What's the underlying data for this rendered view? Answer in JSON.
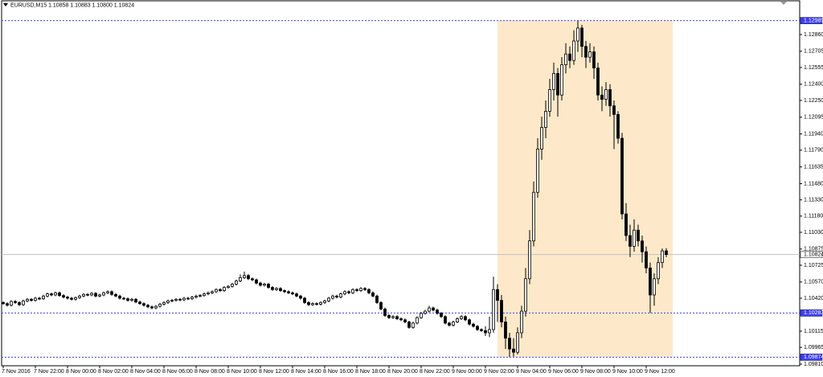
{
  "chart_data": {
    "type": "candlestick",
    "title": "EURUSD,M15  1.10858 1.10883 1.10800 1.10824",
    "up_color": "#ffffff",
    "down_color": "#000000",
    "level_color": "#3c3cff",
    "highlight_color": "#fde9c9",
    "ylim": [
      1.09795,
      1.13172
    ],
    "yticks": [
      {
        "value": 1.1286,
        "label": "1.12860"
      },
      {
        "value": 1.12705,
        "label": "1.12705"
      },
      {
        "value": 1.12555,
        "label": "1.12555"
      },
      {
        "value": 1.124,
        "label": "1.12400"
      },
      {
        "value": 1.1225,
        "label": "1.12250"
      },
      {
        "value": 1.12095,
        "label": "1.12095"
      },
      {
        "value": 1.1194,
        "label": "1.11940"
      },
      {
        "value": 1.1179,
        "label": "1.11790"
      },
      {
        "value": 1.11635,
        "label": "1.11635"
      },
      {
        "value": 1.1148,
        "label": "1.11480"
      },
      {
        "value": 1.1133,
        "label": "1.11330"
      },
      {
        "value": 1.1118,
        "label": "1.11180"
      },
      {
        "value": 1.1103,
        "label": "1.11030"
      },
      {
        "value": 1.10875,
        "label": "1.10875"
      },
      {
        "value": 1.10725,
        "label": "1.10725"
      },
      {
        "value": 1.1057,
        "label": "1.10570"
      },
      {
        "value": 1.1042,
        "label": "1.10420"
      },
      {
        "value": 1.10115,
        "label": "1.10115"
      },
      {
        "value": 1.09965,
        "label": "1.09965"
      },
      {
        "value": 1.0981,
        "label": "1.09810"
      }
    ],
    "levels": [
      1.12989,
      1.10283,
      1.09874
    ],
    "current_price": 1.10824,
    "categories": [
      "7 Nov 2016",
      null,
      null,
      null,
      null,
      null,
      null,
      null,
      "7 Nov 22:00",
      null,
      null,
      null,
      null,
      null,
      null,
      null,
      "8 Nov 00:00",
      null,
      null,
      null,
      null,
      null,
      null,
      null,
      "8 Nov 02:00",
      null,
      null,
      null,
      null,
      null,
      null,
      null,
      "8 Nov 04:00",
      null,
      null,
      null,
      null,
      null,
      null,
      null,
      "8 Nov 06:00",
      null,
      null,
      null,
      null,
      null,
      null,
      null,
      "8 Nov 08:00",
      null,
      null,
      null,
      null,
      null,
      null,
      null,
      "8 Nov 10:00",
      null,
      null,
      null,
      null,
      null,
      null,
      null,
      "8 Nov 12:00",
      null,
      null,
      null,
      null,
      null,
      null,
      null,
      "8 Nov 14:00",
      null,
      null,
      null,
      null,
      null,
      null,
      null,
      "8 Nov 16:00",
      null,
      null,
      null,
      null,
      null,
      null,
      null,
      "8 Nov 18:00",
      null,
      null,
      null,
      null,
      null,
      null,
      null,
      "8 Nov 20:00",
      null,
      null,
      null,
      null,
      null,
      null,
      null,
      "8 Nov 22:00",
      null,
      null,
      null,
      null,
      null,
      null,
      null,
      "9 Nov 00:00",
      null,
      null,
      null,
      null,
      null,
      null,
      null,
      "9 Nov 02:00",
      null,
      null,
      null,
      null,
      null,
      null,
      null,
      "9 Nov 04:00",
      null,
      null,
      null,
      null,
      null,
      null,
      null,
      "9 Nov 06:00",
      null,
      null,
      null,
      null,
      null,
      null,
      null,
      "9 Nov 08:00",
      null,
      null,
      null,
      null,
      null,
      null,
      null,
      "9 Nov 10:00",
      null,
      null,
      null,
      null,
      null,
      null,
      null,
      "9 Nov 12:00",
      null,
      null,
      null,
      null,
      null
    ],
    "ohlc": [
      [
        1.1038,
        1.10392,
        1.10358,
        1.1037
      ],
      [
        1.1037,
        1.10382,
        1.10343,
        1.10355
      ],
      [
        1.10355,
        1.10402,
        1.10343,
        1.1039
      ],
      [
        1.1039,
        1.10402,
        1.10368,
        1.1038
      ],
      [
        1.1038,
        1.10392,
        1.10348,
        1.1036
      ],
      [
        1.1036,
        1.10407,
        1.10348,
        1.10395
      ],
      [
        1.10395,
        1.10422,
        1.10383,
        1.1041
      ],
      [
        1.1041,
        1.10422,
        1.10388,
        1.104
      ],
      [
        1.104,
        1.10432,
        1.10388,
        1.1042
      ],
      [
        1.1042,
        1.10432,
        1.10403,
        1.10415
      ],
      [
        1.10415,
        1.10452,
        1.10403,
        1.1044
      ],
      [
        1.1044,
        1.10472,
        1.10428,
        1.1046
      ],
      [
        1.1046,
        1.10472,
        1.10438,
        1.1045
      ],
      [
        1.1045,
        1.10482,
        1.10438,
        1.1047
      ],
      [
        1.1047,
        1.10482,
        1.10433,
        1.10445
      ],
      [
        1.10445,
        1.10457,
        1.10418,
        1.1043
      ],
      [
        1.1043,
        1.10442,
        1.10408,
        1.1042
      ],
      [
        1.1042,
        1.10432,
        1.10398,
        1.1041
      ],
      [
        1.1041,
        1.10437,
        1.10398,
        1.10425
      ],
      [
        1.10425,
        1.10452,
        1.10413,
        1.1044
      ],
      [
        1.1044,
        1.10467,
        1.10428,
        1.10455
      ],
      [
        1.10455,
        1.10467,
        1.10438,
        1.1045
      ],
      [
        1.1045,
        1.10477,
        1.10438,
        1.10465
      ],
      [
        1.10465,
        1.10477,
        1.10428,
        1.1044
      ],
      [
        1.1044,
        1.10462,
        1.10428,
        1.1045
      ],
      [
        1.1045,
        1.10482,
        1.10438,
        1.1047
      ],
      [
        1.1047,
        1.10492,
        1.10458,
        1.1048
      ],
      [
        1.1048,
        1.10492,
        1.10443,
        1.10455
      ],
      [
        1.10455,
        1.10467,
        1.10428,
        1.1044
      ],
      [
        1.1044,
        1.10452,
        1.10408,
        1.1042
      ],
      [
        1.1042,
        1.10432,
        1.10403,
        1.10415
      ],
      [
        1.10415,
        1.10427,
        1.10388,
        1.104
      ],
      [
        1.104,
        1.10422,
        1.10388,
        1.1041
      ],
      [
        1.1041,
        1.10422,
        1.10373,
        1.10385
      ],
      [
        1.10385,
        1.10397,
        1.10358,
        1.1037
      ],
      [
        1.1037,
        1.10382,
        1.10343,
        1.10355
      ],
      [
        1.10355,
        1.10367,
        1.10328,
        1.1034
      ],
      [
        1.1034,
        1.10352,
        1.10318,
        1.1033
      ],
      [
        1.1033,
        1.10357,
        1.10318,
        1.10345
      ],
      [
        1.10345,
        1.10377,
        1.10333,
        1.10365
      ],
      [
        1.10365,
        1.10392,
        1.10353,
        1.1038
      ],
      [
        1.1038,
        1.10407,
        1.10368,
        1.10395
      ],
      [
        1.10395,
        1.10412,
        1.10383,
        1.104
      ],
      [
        1.104,
        1.10422,
        1.10388,
        1.1041
      ],
      [
        1.1041,
        1.10422,
        1.10393,
        1.10405
      ],
      [
        1.10405,
        1.10432,
        1.10393,
        1.1042
      ],
      [
        1.1042,
        1.10432,
        1.10403,
        1.10415
      ],
      [
        1.10415,
        1.10442,
        1.10403,
        1.1043
      ],
      [
        1.1043,
        1.10452,
        1.10418,
        1.1044
      ],
      [
        1.1044,
        1.10457,
        1.10428,
        1.10445
      ],
      [
        1.10445,
        1.10472,
        1.10433,
        1.1046
      ],
      [
        1.1046,
        1.10482,
        1.10448,
        1.1047
      ],
      [
        1.1047,
        1.10492,
        1.10458,
        1.1048
      ],
      [
        1.1048,
        1.10512,
        1.10468,
        1.105
      ],
      [
        1.105,
        1.10512,
        1.10478,
        1.1049
      ],
      [
        1.1049,
        1.10532,
        1.10478,
        1.1052
      ],
      [
        1.1052,
        1.10542,
        1.10508,
        1.1053
      ],
      [
        1.1053,
        1.10562,
        1.10518,
        1.1055
      ],
      [
        1.1055,
        1.10592,
        1.10538,
        1.1058
      ],
      [
        1.1058,
        1.1064,
        1.10568,
        1.1061
      ],
      [
        1.1061,
        1.10666,
        1.10598,
        1.1063
      ],
      [
        1.1063,
        1.10642,
        1.10588,
        1.106
      ],
      [
        1.106,
        1.10612,
        1.10578,
        1.1059
      ],
      [
        1.1059,
        1.10602,
        1.10548,
        1.1056
      ],
      [
        1.1056,
        1.10572,
        1.10528,
        1.1054
      ],
      [
        1.1054,
        1.10562,
        1.10528,
        1.1055
      ],
      [
        1.1055,
        1.10562,
        1.10508,
        1.1052
      ],
      [
        1.1052,
        1.10532,
        1.10488,
        1.105
      ],
      [
        1.105,
        1.10522,
        1.10488,
        1.1051
      ],
      [
        1.1051,
        1.10522,
        1.10478,
        1.1049
      ],
      [
        1.1049,
        1.10502,
        1.10468,
        1.1048
      ],
      [
        1.1048,
        1.10492,
        1.10458,
        1.1047
      ],
      [
        1.1047,
        1.10482,
        1.10448,
        1.1046
      ],
      [
        1.1046,
        1.10472,
        1.10428,
        1.1044
      ],
      [
        1.1044,
        1.10452,
        1.10408,
        1.1042
      ],
      [
        1.1042,
        1.10432,
        1.10368,
        1.1038
      ],
      [
        1.1038,
        1.10392,
        1.10348,
        1.1036
      ],
      [
        1.1036,
        1.10382,
        1.10348,
        1.1037
      ],
      [
        1.1037,
        1.10382,
        1.10353,
        1.10365
      ],
      [
        1.10365,
        1.10392,
        1.10353,
        1.1038
      ],
      [
        1.1038,
        1.10407,
        1.10368,
        1.10395
      ],
      [
        1.10395,
        1.10432,
        1.10383,
        1.1042
      ],
      [
        1.1042,
        1.10452,
        1.10408,
        1.1044
      ],
      [
        1.1044,
        1.10452,
        1.10418,
        1.1043
      ],
      [
        1.1043,
        1.10472,
        1.10418,
        1.1046
      ],
      [
        1.1046,
        1.10492,
        1.10448,
        1.1048
      ],
      [
        1.1048,
        1.10492,
        1.10458,
        1.1047
      ],
      [
        1.1047,
        1.10512,
        1.10458,
        1.105
      ],
      [
        1.105,
        1.10512,
        1.10478,
        1.1049
      ],
      [
        1.1049,
        1.10522,
        1.10478,
        1.1051
      ],
      [
        1.1051,
        1.10522,
        1.10488,
        1.105
      ],
      [
        1.105,
        1.10512,
        1.10458,
        1.1047
      ],
      [
        1.1047,
        1.10482,
        1.10428,
        1.1044
      ],
      [
        1.1044,
        1.10452,
        1.10368,
        1.1038
      ],
      [
        1.1038,
        1.10392,
        1.10308,
        1.1032
      ],
      [
        1.1032,
        1.10332,
        1.10248,
        1.1026
      ],
      [
        1.1026,
        1.10272,
        1.10228,
        1.1024
      ],
      [
        1.1024,
        1.10262,
        1.10228,
        1.1025
      ],
      [
        1.1025,
        1.10262,
        1.10218,
        1.1023
      ],
      [
        1.1023,
        1.10242,
        1.10208,
        1.1022
      ],
      [
        1.1022,
        1.10232,
        1.10188,
        1.102
      ],
      [
        1.102,
        1.10212,
        1.10138,
        1.1015
      ],
      [
        1.1015,
        1.10202,
        1.10138,
        1.1019
      ],
      [
        1.1019,
        1.10252,
        1.10178,
        1.1024
      ],
      [
        1.1024,
        1.10292,
        1.10228,
        1.1028
      ],
      [
        1.1028,
        1.10312,
        1.10268,
        1.103
      ],
      [
        1.103,
        1.1035,
        1.10288,
        1.1033
      ],
      [
        1.1033,
        1.10342,
        1.10298,
        1.1031
      ],
      [
        1.1031,
        1.10322,
        1.10268,
        1.1028
      ],
      [
        1.1028,
        1.10292,
        1.10238,
        1.1025
      ],
      [
        1.1025,
        1.10262,
        1.10178,
        1.1019
      ],
      [
        1.1019,
        1.10202,
        1.10158,
        1.1017
      ],
      [
        1.1017,
        1.10212,
        1.10158,
        1.102
      ],
      [
        1.102,
        1.10242,
        1.10188,
        1.1023
      ],
      [
        1.1023,
        1.10262,
        1.10218,
        1.1025
      ],
      [
        1.1025,
        1.10262,
        1.10208,
        1.1022
      ],
      [
        1.1022,
        1.10232,
        1.10168,
        1.1018
      ],
      [
        1.1018,
        1.10192,
        1.10148,
        1.1016
      ],
      [
        1.1016,
        1.10172,
        1.10118,
        1.1013
      ],
      [
        1.1013,
        1.10142,
        1.10108,
        1.1012
      ],
      [
        1.1012,
        1.1016,
        1.1007,
        1.101
      ],
      [
        1.101,
        1.1025,
        1.1006,
        1.1013
      ],
      [
        1.1013,
        1.1062,
        1.101,
        1.105
      ],
      [
        1.105,
        1.1055,
        1.102,
        1.104
      ],
      [
        1.104,
        1.1045,
        1.1015,
        1.102
      ],
      [
        1.102,
        1.1025,
        1.0995,
        1.1005
      ],
      [
        1.1005,
        1.101,
        1.09876,
        1.0995
      ],
      [
        1.0995,
        1.1005,
        1.0988,
        1.0992
      ],
      [
        1.0992,
        1.1015,
        1.099,
        1.101
      ],
      [
        1.101,
        1.1035,
        1.1005,
        1.103
      ],
      [
        1.103,
        1.107,
        1.1025,
        1.106
      ],
      [
        1.106,
        1.1105,
        1.1055,
        1.1095
      ],
      [
        1.1095,
        1.115,
        1.109,
        1.114
      ],
      [
        1.114,
        1.119,
        1.1135,
        1.118
      ],
      [
        1.118,
        1.121,
        1.117,
        1.12
      ],
      [
        1.12,
        1.1225,
        1.119,
        1.1215
      ],
      [
        1.1215,
        1.1245,
        1.121,
        1.1235
      ],
      [
        1.1235,
        1.126,
        1.1225,
        1.125
      ],
      [
        1.125,
        1.1255,
        1.121,
        1.123
      ],
      [
        1.123,
        1.1265,
        1.1225,
        1.1258
      ],
      [
        1.1258,
        1.1278,
        1.125,
        1.1268
      ],
      [
        1.1268,
        1.1275,
        1.1255,
        1.1262
      ],
      [
        1.1262,
        1.129,
        1.1258,
        1.128
      ],
      [
        1.128,
        1.12989,
        1.127,
        1.1292
      ],
      [
        1.1292,
        1.1295,
        1.1265,
        1.1275
      ],
      [
        1.1275,
        1.128,
        1.1255,
        1.1265
      ],
      [
        1.1265,
        1.1278,
        1.126,
        1.127
      ],
      [
        1.127,
        1.1275,
        1.1245,
        1.1255
      ],
      [
        1.1255,
        1.126,
        1.1225,
        1.123
      ],
      [
        1.123,
        1.1238,
        1.1215,
        1.1226
      ],
      [
        1.1226,
        1.1242,
        1.122,
        1.1235
      ],
      [
        1.1235,
        1.124,
        1.121,
        1.122
      ],
      [
        1.122,
        1.1225,
        1.118,
        1.1212
      ],
      [
        1.1212,
        1.1215,
        1.1185,
        1.119
      ],
      [
        1.119,
        1.1195,
        1.1115,
        1.112
      ],
      [
        1.112,
        1.113,
        1.1095,
        1.11
      ],
      [
        1.11,
        1.111,
        1.108,
        1.109
      ],
      [
        1.109,
        1.1115,
        1.1085,
        1.1105
      ],
      [
        1.1105,
        1.111,
        1.109,
        1.1095
      ],
      [
        1.1095,
        1.11,
        1.1075,
        1.1085
      ],
      [
        1.1085,
        1.109,
        1.1065,
        1.107
      ],
      [
        1.107,
        1.1075,
        1.10283,
        1.1045
      ],
      [
        1.1045,
        1.1065,
        1.1035,
        1.106
      ],
      [
        1.106,
        1.108,
        1.1055,
        1.1075
      ],
      [
        1.1075,
        1.1088,
        1.107,
        1.10858
      ],
      [
        1.10858,
        1.10883,
        1.108,
        1.10824
      ]
    ]
  }
}
